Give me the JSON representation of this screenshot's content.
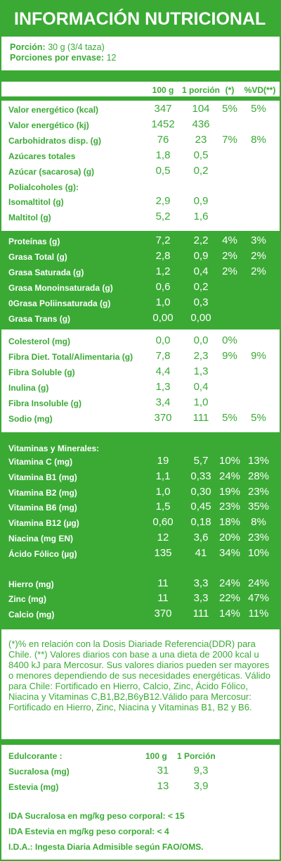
{
  "title": "INFORMACIÓN NUTRICIONAL",
  "serving": {
    "portion_label": "Porción:",
    "portion_value": "30 g (3/4 taza)",
    "per_pack_label": "Porciones por envase:",
    "per_pack_value": "12"
  },
  "columns": [
    "100 g",
    "1 porción",
    "(*)",
    "%VD(**)"
  ],
  "section1": [
    {
      "name": "Valor energético (kcal)",
      "v100": "347",
      "vpor": "104",
      "p1": "5%",
      "p2": "5%"
    },
    {
      "name": "Valor energético (kj)",
      "v100": "1452",
      "vpor": "436",
      "p1": "",
      "p2": ""
    },
    {
      "name": "Carbohidratos disp. (g)",
      "v100": "76",
      "vpor": "23",
      "p1": "7%",
      "p2": "8%"
    },
    {
      "name": "Azúcares totales",
      "v100": "1,8",
      "vpor": "0,5",
      "p1": "",
      "p2": ""
    },
    {
      "name": "Azúcar (sacarosa) (g)",
      "v100": "0,5",
      "vpor": "0,2",
      "p1": "",
      "p2": ""
    },
    {
      "name": "Polialcoholes (g):",
      "v100": "",
      "vpor": "",
      "p1": "",
      "p2": ""
    },
    {
      "name": "Isomaltitol (g)",
      "v100": "2,9",
      "vpor": "0,9",
      "p1": "",
      "p2": ""
    },
    {
      "name": "Maltitol (g)",
      "v100": "5,2",
      "vpor": "1,6",
      "p1": "",
      "p2": ""
    }
  ],
  "section2": [
    {
      "name": "Proteínas (g)",
      "v100": "7,2",
      "vpor": "2,2",
      "p1": "4%",
      "p2": "3%"
    },
    {
      "name": "Grasa Total (g)",
      "v100": "2,8",
      "vpor": "0,9",
      "p1": "2%",
      "p2": "2%"
    },
    {
      "name": "Grasa Saturada (g)",
      "v100": "1,2",
      "vpor": "0,4",
      "p1": "2%",
      "p2": "2%"
    },
    {
      "name": "Grasa Monoinsaturada (g)",
      "v100": "0,6",
      "vpor": "0,2",
      "p1": "",
      "p2": ""
    },
    {
      "name": "0Grasa Poliinsaturada (g)",
      "v100": "1,0",
      "vpor": "0,3",
      "p1": "",
      "p2": ""
    },
    {
      "name": "Grasa Trans (g)",
      "v100": "0,00",
      "vpor": "0,00",
      "p1": "",
      "p2": ""
    }
  ],
  "section3": [
    {
      "name": "Colesterol (mg)",
      "v100": "0,0",
      "vpor": "0,0",
      "p1": "0%",
      "p2": ""
    },
    {
      "name": "Fibra Diet. Total/Alimentaria (g)",
      "v100": "7,8",
      "vpor": "2,3",
      "p1": "9%",
      "p2": "9%"
    },
    {
      "name": "Fibra Soluble (g)",
      "v100": "4,4",
      "vpor": "1,3",
      "p1": "",
      "p2": ""
    },
    {
      "name": "Inulina (g)",
      "v100": "1,3",
      "vpor": "0,4",
      "p1": "",
      "p2": ""
    },
    {
      "name": "Fibra Insoluble (g)",
      "v100": "3,4",
      "vpor": "1,0",
      "p1": "",
      "p2": ""
    },
    {
      "name": "Sodio (mg)",
      "v100": "370",
      "vpor": "111",
      "p1": "5%",
      "p2": "5%"
    }
  ],
  "vitamins_header": "Vitaminas y Minerales:",
  "section4": [
    {
      "name": "Vitamina C (mg)",
      "v100": "19",
      "vpor": "5,7",
      "p1": "10%",
      "p2": "13%"
    },
    {
      "name": "Vitamina B1 (mg)",
      "v100": "1,1",
      "vpor": "0,33",
      "p1": "24%",
      "p2": "28%"
    },
    {
      "name": "Vitamina B2 (mg)",
      "v100": "1,0",
      "vpor": "0,30",
      "p1": "19%",
      "p2": "23%"
    },
    {
      "name": "Vitamina B6 (mg)",
      "v100": "1,5",
      "vpor": "0,45",
      "p1": "23%",
      "p2": "35%"
    },
    {
      "name": "Vitamina B12 (µg)",
      "v100": "0,60",
      "vpor": "0,18",
      "p1": "18%",
      "p2": "8%"
    },
    {
      "name": "Niacina (mg EN)",
      "v100": "12",
      "vpor": "3,6",
      "p1": "20%",
      "p2": "23%"
    },
    {
      "name": "Ácido Fólico (µg)",
      "v100": "135",
      "vpor": "41",
      "p1": "34%",
      "p2": "10%"
    },
    {
      "name": "Hierro (mg)",
      "v100": "11",
      "vpor": "3,3",
      "p1": "24%",
      "p2": "24%"
    },
    {
      "name": "Zinc (mg)",
      "v100": "11",
      "vpor": "3,3",
      "p1": "22%",
      "p2": "47%"
    },
    {
      "name": "Calcio (mg)",
      "v100": "370",
      "vpor": "111",
      "p1": "14%",
      "p2": "11%"
    }
  ],
  "footnote": "(*)% en relación con la Dosis Diariade Referencia(DDR) para Chile. (**) Valores diarios con base a una dieta de 2000 kcal u 8400 kJ para Mercosur. Sus valores diarios pueden ser mayores o menores dependiendo de sus necesidades energéticas. Válido para Chile: Fortificado en Hierro, Calcio, Zinc, Ácido Fólico, Niacina y Vitaminas C,B1,B2,B6yB12.Válido para Mercosur: Fortificado en Hierro, Zinc, Niacina y Vitaminas B1, B2 y B6.",
  "sweeteners": {
    "header": "Edulcorante :",
    "col1": "100 g",
    "col2": "1 Porción",
    "rows": [
      {
        "name": "Sucralosa (mg)",
        "v100": "31",
        "vpor": "9,3"
      },
      {
        "name": "Estevia (mg)",
        "v100": "13",
        "vpor": "3,9"
      }
    ]
  },
  "ida": [
    "IDA Sucralosa en mg/kg peso corporal: < 15",
    "IDA Estevia en mg/kg peso corporal: < 4",
    "I.D.A.: Ingesta Diaria Admisible según FAO/OMS."
  ],
  "colors": {
    "green": "#3aaa35",
    "white": "#ffffff"
  }
}
